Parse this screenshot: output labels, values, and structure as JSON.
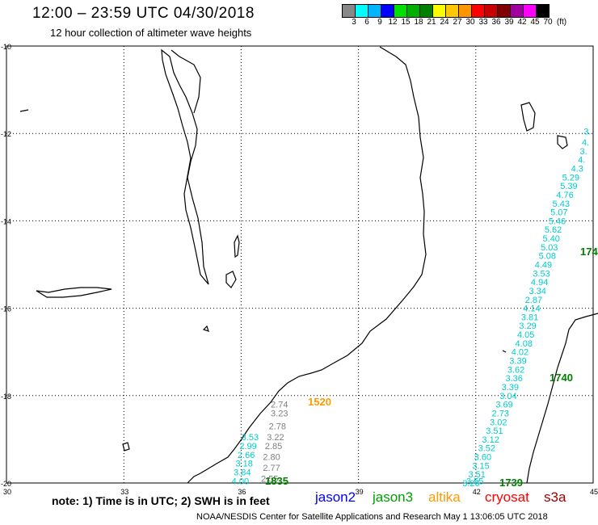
{
  "header": {
    "title": "12:00 – 23:59 UTC 04/30/2018",
    "subtitle": "12 hour collection of altimeter wave heights"
  },
  "scale": {
    "unit": "(ft)",
    "labels": [
      "3",
      "6",
      "9",
      "12",
      "15",
      "18",
      "21",
      "24",
      "27",
      "30",
      "33",
      "36",
      "39",
      "42",
      "45",
      "70"
    ],
    "colors": [
      "#888888",
      "#00ffff",
      "#00b4ff",
      "#0000ff",
      "#00e000",
      "#00b000",
      "#008000",
      "#ffff00",
      "#ffc800",
      "#ff9600",
      "#ff0000",
      "#c80000",
      "#800000",
      "#a000a0",
      "#ff00ff",
      "#000000"
    ]
  },
  "map": {
    "lat_labels": [
      "-10",
      "-12",
      "-14",
      "-16",
      "-18",
      "-20"
    ],
    "lon_labels": [
      "30",
      "33",
      "36",
      "39",
      "42",
      "45"
    ],
    "lat_range": [
      -20,
      -10
    ],
    "lon_range": [
      30,
      45
    ]
  },
  "tracks": [
    {
      "satellite": "jason3",
      "color": "#00cccc",
      "time": "1740",
      "time_color": "#008000",
      "points": [
        {
          "lat": -11.95,
          "lon": 44.95,
          "v": "3."
        },
        {
          "lat": -12.2,
          "lon": 44.9,
          "v": "4."
        },
        {
          "lat": -12.4,
          "lon": 44.85,
          "v": "3."
        },
        {
          "lat": -12.6,
          "lon": 44.8,
          "v": "4."
        },
        {
          "lat": -12.8,
          "lon": 44.75,
          "v": "4.3"
        },
        {
          "lat": -13.0,
          "lon": 44.65,
          "v": "5.29"
        },
        {
          "lat": -13.2,
          "lon": 44.6,
          "v": "5.39"
        },
        {
          "lat": -13.4,
          "lon": 44.5,
          "v": "4.76"
        },
        {
          "lat": -13.6,
          "lon": 44.4,
          "v": "5.43"
        },
        {
          "lat": -13.8,
          "lon": 44.35,
          "v": "5.07"
        },
        {
          "lat": -14.0,
          "lon": 44.3,
          "v": "5.46"
        },
        {
          "lat": -14.2,
          "lon": 44.2,
          "v": "5.62"
        },
        {
          "lat": -14.4,
          "lon": 44.15,
          "v": "5.40"
        },
        {
          "lat": -14.6,
          "lon": 44.1,
          "v": "5.03"
        },
        {
          "lat": -14.8,
          "lon": 44.05,
          "v": "5.08"
        },
        {
          "lat": -15.0,
          "lon": 43.95,
          "v": "4.49"
        },
        {
          "lat": -15.2,
          "lon": 43.9,
          "v": "3.53"
        },
        {
          "lat": -15.4,
          "lon": 43.85,
          "v": "4.94"
        },
        {
          "lat": -15.6,
          "lon": 43.8,
          "v": "3.34"
        },
        {
          "lat": -15.8,
          "lon": 43.7,
          "v": "2.87"
        },
        {
          "lat": -16.0,
          "lon": 43.65,
          "v": "4.14"
        },
        {
          "lat": -16.2,
          "lon": 43.6,
          "v": "3.81"
        },
        {
          "lat": -16.4,
          "lon": 43.55,
          "v": "3.29"
        },
        {
          "lat": -16.6,
          "lon": 43.5,
          "v": "4.05"
        },
        {
          "lat": -16.8,
          "lon": 43.45,
          "v": "4.08"
        },
        {
          "lat": -17.0,
          "lon": 43.35,
          "v": "4.02"
        },
        {
          "lat": -17.2,
          "lon": 43.3,
          "v": "3.39"
        },
        {
          "lat": -17.4,
          "lon": 43.25,
          "v": "3.62"
        },
        {
          "lat": -17.6,
          "lon": 43.2,
          "v": "3.36"
        },
        {
          "lat": -17.8,
          "lon": 43.1,
          "v": "3.39"
        },
        {
          "lat": -18.0,
          "lon": 43.05,
          "v": "3.04"
        }
      ]
    },
    {
      "satellite": "jason3",
      "color": "#00cccc",
      "time": "1739",
      "time_color": "#008000",
      "points": [
        {
          "lat": -18.2,
          "lon": 42.95,
          "v": "3.69"
        },
        {
          "lat": -18.4,
          "lon": 42.85,
          "v": "2.73"
        },
        {
          "lat": -18.6,
          "lon": 42.8,
          "v": "3.02"
        },
        {
          "lat": -18.8,
          "lon": 42.7,
          "v": "3.51"
        },
        {
          "lat": -19.0,
          "lon": 42.6,
          "v": "3.12"
        },
        {
          "lat": -19.2,
          "lon": 42.5,
          "v": "3.52"
        },
        {
          "lat": -19.4,
          "lon": 42.4,
          "v": "3.60"
        },
        {
          "lat": -19.6,
          "lon": 42.35,
          "v": "3.15"
        },
        {
          "lat": -19.8,
          "lon": 42.25,
          "v": "3.51"
        },
        {
          "lat": -19.95,
          "lon": 42.2,
          "v": "3.55"
        },
        {
          "lat": -20.0,
          "lon": 42.1,
          "v": "3.26"
        }
      ]
    },
    {
      "satellite": "altika",
      "color": "#808080",
      "time": "1520",
      "time_color": "#ff9900",
      "points": [
        {
          "lat": -18.2,
          "lon": 37.2,
          "v": "2.74"
        },
        {
          "lat": -18.4,
          "lon": 37.2,
          "v": "3.23"
        },
        {
          "lat": -18.7,
          "lon": 37.15,
          "v": "2.78"
        },
        {
          "lat": -18.95,
          "lon": 37.1,
          "v": "3.22"
        },
        {
          "lat": -19.15,
          "lon": 37.05,
          "v": "2.85"
        },
        {
          "lat": -19.4,
          "lon": 37.0,
          "v": "2.80"
        },
        {
          "lat": -19.65,
          "lon": 37.0,
          "v": "2.77"
        },
        {
          "lat": -19.9,
          "lon": 36.95,
          "v": "2.55"
        }
      ]
    },
    {
      "satellite": "jason3b",
      "color": "#00cccc",
      "time": "1835",
      "time_color": "#008000",
      "points": [
        {
          "lat": -18.95,
          "lon": 36.45,
          "v": "3.53"
        },
        {
          "lat": -19.15,
          "lon": 36.4,
          "v": "2.99"
        },
        {
          "lat": -19.35,
          "lon": 36.35,
          "v": "2.66"
        },
        {
          "lat": -19.55,
          "lon": 36.3,
          "v": "3.18"
        },
        {
          "lat": -19.75,
          "lon": 36.25,
          "v": "3.84"
        },
        {
          "lat": -19.95,
          "lon": 36.2,
          "v": "4.00"
        }
      ]
    }
  ],
  "track_time_labels": {
    "t1740_alt": "174"
  },
  "note": "note: 1) Time is in UTC; 2) SWH is in feet",
  "satellites": [
    {
      "name": "jason2",
      "color": "#0000ff"
    },
    {
      "name": "jason3",
      "color": "#00a000"
    },
    {
      "name": "altika",
      "color": "#ff9900"
    },
    {
      "name": "cryosat",
      "color": "#ff0000"
    },
    {
      "name": "s3a",
      "color": "#a00000"
    }
  ],
  "credit": "NOAA/NESDIS Center for Satellite Applications and Research    May  1 13:06:05 UTC 2018"
}
